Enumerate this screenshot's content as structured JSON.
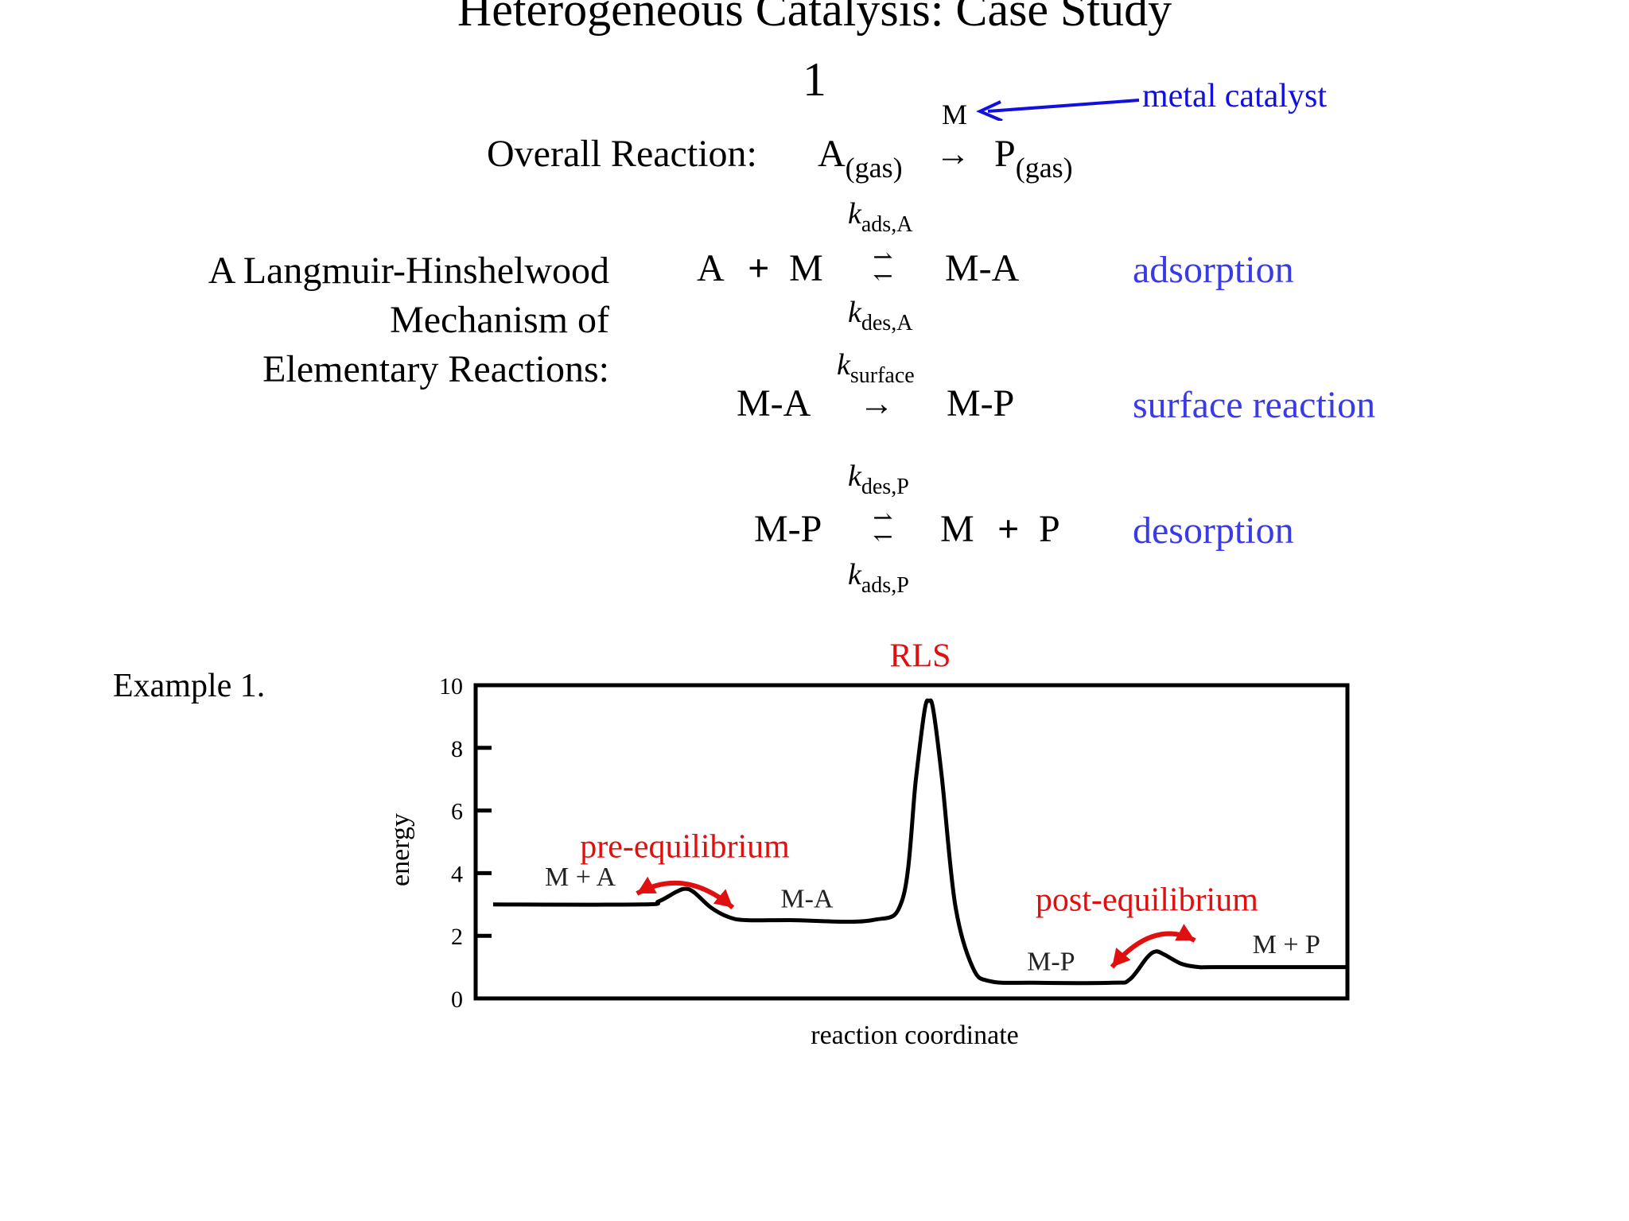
{
  "title": {
    "line1": "Heterogeneous Catalysis: Case Study",
    "line2": "1"
  },
  "overall": {
    "label": "Overall Reaction:",
    "reactant": "A",
    "reactant_phase": "(gas)",
    "arrow": "→",
    "product": "P",
    "product_phase": "(gas)",
    "catalyst_symbol": "M",
    "catalyst_note": "metal catalyst"
  },
  "mechanism": {
    "label_lines": [
      "A Langmuir-Hinshelwood",
      "Mechanism of",
      "Elementary Reactions:"
    ],
    "steps": [
      {
        "lhs1": "A",
        "plus": "+",
        "lhs2": "M",
        "k_top_base": "k",
        "k_top_sub": "ads,A",
        "k_bottom_base": "k",
        "k_bottom_sub": "des,A",
        "arrow_fwd": "⇀",
        "arrow_rev": "↽",
        "rhs": "M-A",
        "name": "adsorption"
      },
      {
        "lhs1": "M-A",
        "k_top_base": "k",
        "k_top_sub": "surface",
        "arrow": "→",
        "rhs": "M-P",
        "name": "surface reaction"
      },
      {
        "lhs1": "M-P",
        "k_top_base": "k",
        "k_top_sub": "des,P",
        "k_bottom_base": "k",
        "k_bottom_sub": "ads,P",
        "arrow_fwd": "⇀",
        "arrow_rev": "↽",
        "rhs1": "M",
        "plus": "+",
        "rhs2": "P",
        "name": "desorption"
      }
    ]
  },
  "example_label": "Example 1.",
  "chart_data": {
    "type": "line",
    "title": "",
    "xlabel": "reaction coordinate",
    "ylabel": "energy",
    "ylim": [
      0,
      10
    ],
    "yticks": [
      0,
      2,
      4,
      6,
      8,
      10
    ],
    "xlim": [
      0,
      100
    ],
    "grid": false,
    "line_color": "#000000",
    "x": [
      2,
      19,
      21,
      23,
      24,
      25,
      27,
      29,
      31,
      36,
      45.5,
      49,
      50.5,
      51.5,
      52,
      52.5,
      53.5,
      55,
      57,
      59,
      64,
      73,
      75,
      77,
      78,
      79,
      81,
      83,
      85,
      100
    ],
    "y": [
      3.0,
      3.0,
      3.1,
      3.4,
      3.5,
      3.4,
      2.9,
      2.6,
      2.5,
      2.5,
      2.5,
      3.2,
      7.0,
      9.2,
      9.5,
      9.2,
      7.0,
      3.0,
      1.0,
      0.55,
      0.5,
      0.5,
      0.6,
      1.3,
      1.5,
      1.4,
      1.1,
      1.0,
      1.0,
      1.0
    ],
    "state_labels": [
      {
        "text": "M + A",
        "x": 12,
        "y": 3.6
      },
      {
        "text": "M-A",
        "x": 38,
        "y": 2.9
      },
      {
        "text": "M-P",
        "x": 66,
        "y": 0.9
      },
      {
        "text": "M + P",
        "x": 93,
        "y": 1.45
      }
    ],
    "annotations": [
      {
        "text": "RLS",
        "color": "#e01010",
        "x": 51,
        "y": 10.6
      },
      {
        "text": "pre-equilibrium",
        "color": "#e01010",
        "x": 24,
        "y": 4.5
      },
      {
        "text": "post-equilibrium",
        "color": "#e01010",
        "x": 77,
        "y": 2.8
      }
    ],
    "equilibrium_arrows": [
      {
        "name": "pre-equilibrium-arrow",
        "from": [
          18.5,
          3.35
        ],
        "to": [
          29.5,
          2.9
        ],
        "peak_y": 4.2,
        "color": "#e01010"
      },
      {
        "name": "post-equilibrium-arrow",
        "from": [
          73,
          1.0
        ],
        "to": [
          82.5,
          1.85
        ],
        "peak_y": 2.55,
        "color": "#e01010"
      }
    ]
  }
}
